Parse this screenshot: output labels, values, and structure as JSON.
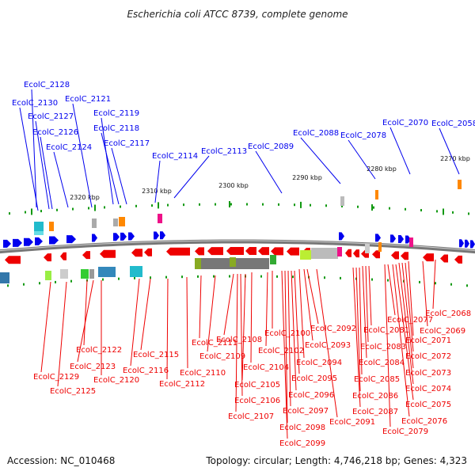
{
  "title": "Escherichia coli ATCC 8739, complete genome",
  "footer": {
    "accession": "Accession: NC_010468",
    "topology": "Topology: circular; Length: 4,746,218 bp; Genes: 4,323"
  },
  "colors": {
    "forward": "#0000ee",
    "reverse": "#ee0000",
    "backbone": "#777777",
    "tick": "#119911"
  },
  "scale": [
    "2320 kbp",
    "2310 kbp",
    "2300 kbp",
    "2290 kbp",
    "2280 kbp",
    "2270 kbp"
  ],
  "forward_labels": [
    "EcolC_2128",
    "EcolC_2130",
    "EcolC_2127",
    "EcolC_2126",
    "EcolC_2124",
    "EcolC_2121",
    "EcolC_2119",
    "EcolC_2118",
    "EcolC_2117",
    "EcolC_2114",
    "EcolC_2113",
    "EcolC_2089",
    "EcolC_2088",
    "EcolC_2078",
    "EcolC_2070",
    "EcolC_2058"
  ],
  "reverse_labels": [
    "EcolC_2129",
    "EcolC_2125",
    "EcolC_2122",
    "EcolC_2123",
    "EcolC_2120",
    "EcolC_2116",
    "EcolC_2115",
    "EcolC_2112",
    "EcolC_2110",
    "EcolC_2111",
    "EcolC_2109",
    "EcolC_2108",
    "EcolC_2107",
    "EcolC_2106",
    "EcolC_2105",
    "EcolC_2104",
    "EcolC_2102",
    "EcolC_2100",
    "EcolC_2099",
    "EcolC_2098",
    "EcolC_2097",
    "EcolC_2096",
    "EcolC_2095",
    "EcolC_2094",
    "EcolC_2093",
    "EcolC_2092",
    "EcolC_2091",
    "EcolC_2087",
    "EcolC_2086",
    "EcolC_2085",
    "EcolC_2084",
    "EcolC_2083",
    "EcolC_2081",
    "EcolC_2079",
    "EcolC_2077",
    "EcolC_2076",
    "EcolC_2075",
    "EcolC_2074",
    "EcolC_2073",
    "EcolC_2072",
    "EcolC_2071",
    "EcolC_2069",
    "EcolC_2068"
  ]
}
